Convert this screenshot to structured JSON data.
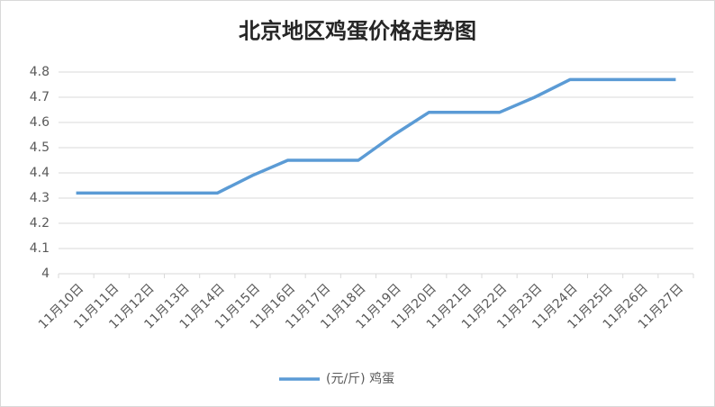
{
  "chart_data": {
    "type": "line",
    "title": "北京地区鸡蛋价格走势图",
    "categories": [
      "11月10日",
      "11月11日",
      "11月12日",
      "11月13日",
      "11月14日",
      "11月15日",
      "11月16日",
      "11月17日",
      "11月18日",
      "11月19日",
      "11月20日",
      "11月21日",
      "11月22日",
      "11月23日",
      "11月24日",
      "11月25日",
      "11月26日",
      "11月27日"
    ],
    "series": [
      {
        "name": "(元/斤) 鸡蛋",
        "color": "#5b9bd5",
        "values": [
          4.32,
          4.32,
          4.32,
          4.32,
          4.32,
          4.39,
          4.45,
          4.45,
          4.45,
          4.55,
          4.64,
          4.64,
          4.64,
          4.7,
          4.77,
          4.77,
          4.77,
          4.77
        ]
      }
    ],
    "ylim": [
      4,
      4.8
    ],
    "yticks": [
      4,
      4.1,
      4.2,
      4.3,
      4.4,
      4.5,
      4.6,
      4.7,
      4.8
    ],
    "grid": true,
    "legend": "bottom"
  }
}
